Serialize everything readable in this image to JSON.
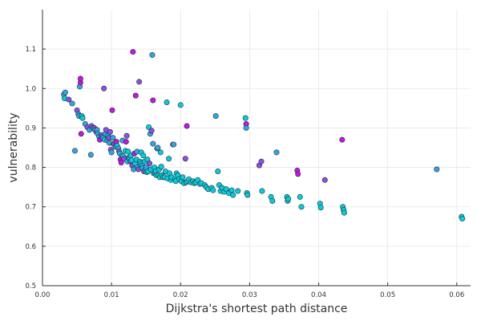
{
  "chart_data": {
    "type": "scatter",
    "xlabel": "Dijkstra's shortest path distance",
    "ylabel": "vulnerability",
    "xlim": [
      0.0,
      0.062
    ],
    "ylim": [
      0.5,
      1.2
    ],
    "x_ticks": [
      0.0,
      0.01,
      0.02,
      0.03,
      0.04,
      0.05,
      0.06
    ],
    "x_tick_labels": [
      "0.00",
      "0.01",
      "0.02",
      "0.03",
      "0.04",
      "0.05",
      "0.06"
    ],
    "y_ticks": [
      0.5,
      0.6,
      0.7,
      0.8,
      0.9,
      1.0,
      1.1
    ],
    "y_tick_labels": [
      "0.5",
      "0.6",
      "0.7",
      "0.8",
      "0.9",
      "1.0",
      "1.1"
    ],
    "grid": true,
    "legend": "none",
    "colors": {
      "cyan": "#00d0dc",
      "blue": "#2ea6e6",
      "purple": "#8a4fe6",
      "magenta": "#c414e6"
    },
    "points": [
      {
        "x": 0.0031,
        "y": 0.985,
        "color": "blue"
      },
      {
        "x": 0.0032,
        "y": 0.975,
        "color": "cyan"
      },
      {
        "x": 0.0033,
        "y": 0.99,
        "color": "blue"
      },
      {
        "x": 0.0038,
        "y": 0.972,
        "color": "purple"
      },
      {
        "x": 0.0043,
        "y": 0.962,
        "color": "blue"
      },
      {
        "x": 0.0047,
        "y": 0.842,
        "color": "blue"
      },
      {
        "x": 0.005,
        "y": 0.945,
        "color": "purple"
      },
      {
        "x": 0.0052,
        "y": 0.935,
        "color": "blue"
      },
      {
        "x": 0.0053,
        "y": 0.93,
        "color": "blue"
      },
      {
        "x": 0.0054,
        "y": 1.005,
        "color": "blue"
      },
      {
        "x": 0.0055,
        "y": 1.015,
        "color": "magenta"
      },
      {
        "x": 0.0055,
        "y": 1.025,
        "color": "magenta"
      },
      {
        "x": 0.0056,
        "y": 0.885,
        "color": "magenta"
      },
      {
        "x": 0.0057,
        "y": 0.93,
        "color": "cyan"
      },
      {
        "x": 0.0058,
        "y": 0.925,
        "color": "cyan"
      },
      {
        "x": 0.0062,
        "y": 0.91,
        "color": "blue"
      },
      {
        "x": 0.0065,
        "y": 0.902,
        "color": "purple"
      },
      {
        "x": 0.0068,
        "y": 0.895,
        "color": "blue"
      },
      {
        "x": 0.007,
        "y": 0.832,
        "color": "blue"
      },
      {
        "x": 0.0071,
        "y": 0.905,
        "color": "purple"
      },
      {
        "x": 0.0073,
        "y": 0.9,
        "color": "blue"
      },
      {
        "x": 0.0075,
        "y": 0.9,
        "color": "purple"
      },
      {
        "x": 0.0076,
        "y": 0.895,
        "color": "blue"
      },
      {
        "x": 0.0078,
        "y": 0.89,
        "color": "purple"
      },
      {
        "x": 0.0079,
        "y": 0.895,
        "color": "blue"
      },
      {
        "x": 0.008,
        "y": 0.885,
        "color": "blue"
      },
      {
        "x": 0.0082,
        "y": 0.878,
        "color": "cyan"
      },
      {
        "x": 0.0083,
        "y": 0.87,
        "color": "magenta"
      },
      {
        "x": 0.0085,
        "y": 0.882,
        "color": "blue"
      },
      {
        "x": 0.0086,
        "y": 0.878,
        "color": "purple"
      },
      {
        "x": 0.0088,
        "y": 0.875,
        "color": "blue"
      },
      {
        "x": 0.0089,
        "y": 1.0,
        "color": "purple"
      },
      {
        "x": 0.009,
        "y": 0.87,
        "color": "cyan"
      },
      {
        "x": 0.0091,
        "y": 0.885,
        "color": "blue"
      },
      {
        "x": 0.0092,
        "y": 0.895,
        "color": "purple"
      },
      {
        "x": 0.0094,
        "y": 0.868,
        "color": "blue"
      },
      {
        "x": 0.0095,
        "y": 0.88,
        "color": "cyan"
      },
      {
        "x": 0.0096,
        "y": 0.875,
        "color": "purple"
      },
      {
        "x": 0.0097,
        "y": 0.862,
        "color": "blue"
      },
      {
        "x": 0.0098,
        "y": 0.89,
        "color": "purple"
      },
      {
        "x": 0.0099,
        "y": 0.845,
        "color": "purple"
      },
      {
        "x": 0.01,
        "y": 0.838,
        "color": "blue"
      },
      {
        "x": 0.0101,
        "y": 0.945,
        "color": "magenta"
      },
      {
        "x": 0.0102,
        "y": 0.875,
        "color": "blue"
      },
      {
        "x": 0.0103,
        "y": 0.86,
        "color": "cyan"
      },
      {
        "x": 0.0104,
        "y": 0.858,
        "color": "purple"
      },
      {
        "x": 0.0106,
        "y": 0.852,
        "color": "blue"
      },
      {
        "x": 0.0107,
        "y": 0.865,
        "color": "magenta"
      },
      {
        "x": 0.0108,
        "y": 0.855,
        "color": "cyan"
      },
      {
        "x": 0.011,
        "y": 0.848,
        "color": "blue"
      },
      {
        "x": 0.0111,
        "y": 0.84,
        "color": "purple"
      },
      {
        "x": 0.0112,
        "y": 0.835,
        "color": "cyan"
      },
      {
        "x": 0.0113,
        "y": 0.82,
        "color": "magenta"
      },
      {
        "x": 0.0114,
        "y": 0.812,
        "color": "magenta"
      },
      {
        "x": 0.0115,
        "y": 0.83,
        "color": "blue"
      },
      {
        "x": 0.0116,
        "y": 0.868,
        "color": "blue"
      },
      {
        "x": 0.0117,
        "y": 0.828,
        "color": "cyan"
      },
      {
        "x": 0.0118,
        "y": 0.822,
        "color": "purple"
      },
      {
        "x": 0.012,
        "y": 0.842,
        "color": "cyan"
      },
      {
        "x": 0.0121,
        "y": 0.865,
        "color": "magenta"
      },
      {
        "x": 0.0122,
        "y": 0.88,
        "color": "purple"
      },
      {
        "x": 0.0123,
        "y": 0.815,
        "color": "cyan"
      },
      {
        "x": 0.0124,
        "y": 0.84,
        "color": "cyan"
      },
      {
        "x": 0.0125,
        "y": 0.825,
        "color": "blue"
      },
      {
        "x": 0.0126,
        "y": 0.822,
        "color": "cyan"
      },
      {
        "x": 0.0127,
        "y": 0.815,
        "color": "purple"
      },
      {
        "x": 0.0128,
        "y": 0.83,
        "color": "cyan"
      },
      {
        "x": 0.0129,
        "y": 0.818,
        "color": "cyan"
      },
      {
        "x": 0.013,
        "y": 0.805,
        "color": "purple"
      },
      {
        "x": 0.0131,
        "y": 1.093,
        "color": "magenta"
      },
      {
        "x": 0.0132,
        "y": 0.795,
        "color": "blue"
      },
      {
        "x": 0.0133,
        "y": 0.835,
        "color": "magenta"
      },
      {
        "x": 0.0134,
        "y": 0.81,
        "color": "cyan"
      },
      {
        "x": 0.0135,
        "y": 0.982,
        "color": "magenta"
      },
      {
        "x": 0.0136,
        "y": 0.82,
        "color": "cyan"
      },
      {
        "x": 0.0137,
        "y": 0.84,
        "color": "blue"
      },
      {
        "x": 0.0138,
        "y": 0.8,
        "color": "cyan"
      },
      {
        "x": 0.0139,
        "y": 0.795,
        "color": "purple"
      },
      {
        "x": 0.014,
        "y": 1.017,
        "color": "purple"
      },
      {
        "x": 0.0141,
        "y": 0.815,
        "color": "cyan"
      },
      {
        "x": 0.0142,
        "y": 0.81,
        "color": "cyan"
      },
      {
        "x": 0.0143,
        "y": 0.838,
        "color": "cyan"
      },
      {
        "x": 0.0144,
        "y": 0.805,
        "color": "blue"
      },
      {
        "x": 0.0145,
        "y": 0.798,
        "color": "cyan"
      },
      {
        "x": 0.0146,
        "y": 0.83,
        "color": "cyan"
      },
      {
        "x": 0.0147,
        "y": 0.79,
        "color": "purple"
      },
      {
        "x": 0.0148,
        "y": 0.815,
        "color": "cyan"
      },
      {
        "x": 0.0149,
        "y": 0.795,
        "color": "cyan"
      },
      {
        "x": 0.015,
        "y": 0.8,
        "color": "blue"
      },
      {
        "x": 0.0151,
        "y": 0.788,
        "color": "cyan"
      },
      {
        "x": 0.0152,
        "y": 0.82,
        "color": "cyan"
      },
      {
        "x": 0.0153,
        "y": 0.79,
        "color": "cyan"
      },
      {
        "x": 0.0154,
        "y": 0.902,
        "color": "cyan"
      },
      {
        "x": 0.0155,
        "y": 0.81,
        "color": "purple"
      },
      {
        "x": 0.0156,
        "y": 0.885,
        "color": "blue"
      },
      {
        "x": 0.0157,
        "y": 0.795,
        "color": "cyan"
      },
      {
        "x": 0.0158,
        "y": 0.893,
        "color": "purple"
      },
      {
        "x": 0.0159,
        "y": 1.085,
        "color": "blue"
      },
      {
        "x": 0.016,
        "y": 0.97,
        "color": "magenta"
      },
      {
        "x": 0.016,
        "y": 0.86,
        "color": "blue"
      },
      {
        "x": 0.0161,
        "y": 0.785,
        "color": "cyan"
      },
      {
        "x": 0.0162,
        "y": 0.8,
        "color": "cyan"
      },
      {
        "x": 0.0163,
        "y": 0.785,
        "color": "blue"
      },
      {
        "x": 0.0164,
        "y": 0.79,
        "color": "cyan"
      },
      {
        "x": 0.0165,
        "y": 0.78,
        "color": "cyan"
      },
      {
        "x": 0.0166,
        "y": 0.848,
        "color": "cyan"
      },
      {
        "x": 0.0167,
        "y": 0.85,
        "color": "blue"
      },
      {
        "x": 0.0168,
        "y": 0.78,
        "color": "cyan"
      },
      {
        "x": 0.0169,
        "y": 0.795,
        "color": "cyan"
      },
      {
        "x": 0.017,
        "y": 0.775,
        "color": "cyan"
      },
      {
        "x": 0.0171,
        "y": 0.838,
        "color": "cyan"
      },
      {
        "x": 0.0172,
        "y": 0.802,
        "color": "cyan"
      },
      {
        "x": 0.0173,
        "y": 0.78,
        "color": "cyan"
      },
      {
        "x": 0.0175,
        "y": 0.775,
        "color": "cyan"
      },
      {
        "x": 0.0177,
        "y": 0.775,
        "color": "cyan"
      },
      {
        "x": 0.0178,
        "y": 0.79,
        "color": "cyan"
      },
      {
        "x": 0.018,
        "y": 0.965,
        "color": "cyan"
      },
      {
        "x": 0.0181,
        "y": 0.772,
        "color": "cyan"
      },
      {
        "x": 0.0183,
        "y": 0.822,
        "color": "cyan"
      },
      {
        "x": 0.0184,
        "y": 0.785,
        "color": "cyan"
      },
      {
        "x": 0.0186,
        "y": 0.768,
        "color": "cyan"
      },
      {
        "x": 0.0187,
        "y": 0.775,
        "color": "cyan"
      },
      {
        "x": 0.0189,
        "y": 0.858,
        "color": "purple"
      },
      {
        "x": 0.019,
        "y": 0.858,
        "color": "blue"
      },
      {
        "x": 0.0192,
        "y": 0.77,
        "color": "cyan"
      },
      {
        "x": 0.0193,
        "y": 0.765,
        "color": "cyan"
      },
      {
        "x": 0.0194,
        "y": 0.785,
        "color": "cyan"
      },
      {
        "x": 0.0196,
        "y": 0.78,
        "color": "cyan"
      },
      {
        "x": 0.0198,
        "y": 0.77,
        "color": "cyan"
      },
      {
        "x": 0.02,
        "y": 0.958,
        "color": "cyan"
      },
      {
        "x": 0.0201,
        "y": 0.765,
        "color": "cyan"
      },
      {
        "x": 0.0203,
        "y": 0.775,
        "color": "cyan"
      },
      {
        "x": 0.0205,
        "y": 0.76,
        "color": "cyan"
      },
      {
        "x": 0.0207,
        "y": 0.822,
        "color": "purple"
      },
      {
        "x": 0.0208,
        "y": 0.762,
        "color": "cyan"
      },
      {
        "x": 0.0209,
        "y": 0.905,
        "color": "magenta"
      },
      {
        "x": 0.021,
        "y": 0.765,
        "color": "cyan"
      },
      {
        "x": 0.0212,
        "y": 0.77,
        "color": "cyan"
      },
      {
        "x": 0.0215,
        "y": 0.762,
        "color": "cyan"
      },
      {
        "x": 0.0218,
        "y": 0.765,
        "color": "cyan"
      },
      {
        "x": 0.022,
        "y": 0.76,
        "color": "cyan"
      },
      {
        "x": 0.0222,
        "y": 0.762,
        "color": "cyan"
      },
      {
        "x": 0.0225,
        "y": 0.768,
        "color": "cyan"
      },
      {
        "x": 0.0228,
        "y": 0.758,
        "color": "cyan"
      },
      {
        "x": 0.023,
        "y": 0.76,
        "color": "cyan"
      },
      {
        "x": 0.0235,
        "y": 0.755,
        "color": "cyan"
      },
      {
        "x": 0.0237,
        "y": 0.75,
        "color": "cyan"
      },
      {
        "x": 0.024,
        "y": 0.745,
        "color": "cyan"
      },
      {
        "x": 0.0245,
        "y": 0.748,
        "color": "cyan"
      },
      {
        "x": 0.0247,
        "y": 0.742,
        "color": "cyan"
      },
      {
        "x": 0.0251,
        "y": 0.93,
        "color": "blue"
      },
      {
        "x": 0.0254,
        "y": 0.79,
        "color": "cyan"
      },
      {
        "x": 0.0256,
        "y": 0.755,
        "color": "cyan"
      },
      {
        "x": 0.0258,
        "y": 0.74,
        "color": "cyan"
      },
      {
        "x": 0.026,
        "y": 0.748,
        "color": "cyan"
      },
      {
        "x": 0.0263,
        "y": 0.738,
        "color": "cyan"
      },
      {
        "x": 0.0266,
        "y": 0.745,
        "color": "cyan"
      },
      {
        "x": 0.027,
        "y": 0.735,
        "color": "cyan"
      },
      {
        "x": 0.0274,
        "y": 0.742,
        "color": "cyan"
      },
      {
        "x": 0.0276,
        "y": 0.73,
        "color": "cyan"
      },
      {
        "x": 0.0283,
        "y": 0.74,
        "color": "cyan"
      },
      {
        "x": 0.0294,
        "y": 0.925,
        "color": "cyan"
      },
      {
        "x": 0.0295,
        "y": 0.91,
        "color": "magenta"
      },
      {
        "x": 0.0295,
        "y": 0.9,
        "color": "blue"
      },
      {
        "x": 0.0296,
        "y": 0.735,
        "color": "cyan"
      },
      {
        "x": 0.0297,
        "y": 0.73,
        "color": "cyan"
      },
      {
        "x": 0.0314,
        "y": 0.805,
        "color": "purple"
      },
      {
        "x": 0.0317,
        "y": 0.815,
        "color": "purple"
      },
      {
        "x": 0.0318,
        "y": 0.74,
        "color": "cyan"
      },
      {
        "x": 0.0331,
        "y": 0.725,
        "color": "cyan"
      },
      {
        "x": 0.0333,
        "y": 0.715,
        "color": "cyan"
      },
      {
        "x": 0.0339,
        "y": 0.838,
        "color": "blue"
      },
      {
        "x": 0.0354,
        "y": 0.725,
        "color": "cyan"
      },
      {
        "x": 0.0355,
        "y": 0.715,
        "color": "cyan"
      },
      {
        "x": 0.0356,
        "y": 0.72,
        "color": "cyan"
      },
      {
        "x": 0.0369,
        "y": 0.792,
        "color": "magenta"
      },
      {
        "x": 0.037,
        "y": 0.783,
        "color": "magenta"
      },
      {
        "x": 0.0373,
        "y": 0.725,
        "color": "cyan"
      },
      {
        "x": 0.0375,
        "y": 0.7,
        "color": "cyan"
      },
      {
        "x": 0.0402,
        "y": 0.708,
        "color": "cyan"
      },
      {
        "x": 0.0403,
        "y": 0.698,
        "color": "cyan"
      },
      {
        "x": 0.0409,
        "y": 0.768,
        "color": "purple"
      },
      {
        "x": 0.0434,
        "y": 0.87,
        "color": "magenta"
      },
      {
        "x": 0.0435,
        "y": 0.7,
        "color": "cyan"
      },
      {
        "x": 0.0436,
        "y": 0.692,
        "color": "cyan"
      },
      {
        "x": 0.0437,
        "y": 0.685,
        "color": "cyan"
      },
      {
        "x": 0.0571,
        "y": 0.795,
        "color": "blue"
      },
      {
        "x": 0.0607,
        "y": 0.675,
        "color": "cyan"
      },
      {
        "x": 0.0608,
        "y": 0.67,
        "color": "cyan"
      }
    ]
  }
}
